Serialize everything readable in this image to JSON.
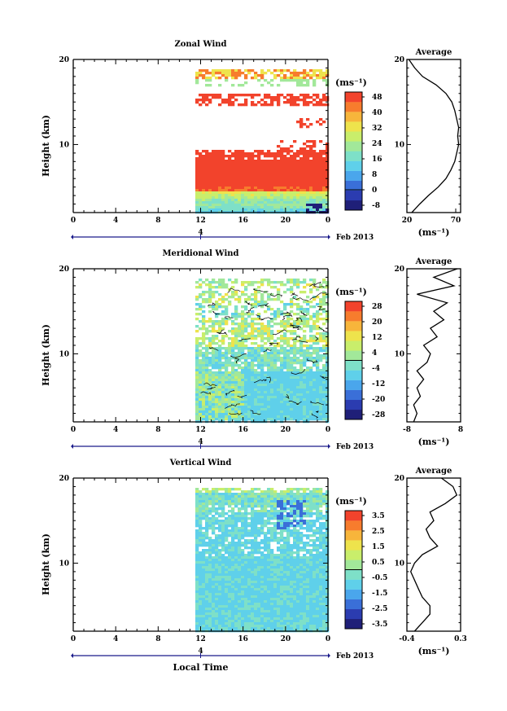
{
  "colormap": [
    "#1f1f78",
    "#2b3cb0",
    "#3a6fd8",
    "#4aa6ec",
    "#5fd0ea",
    "#7ee0c8",
    "#a2e89a",
    "#c9ee6b",
    "#eee34c",
    "#f7b53b",
    "#f77c2d",
    "#f2432c"
  ],
  "chart_data": [
    {
      "type": "heatmap",
      "title": "Zonal Wind",
      "ylabel": "Height (km)",
      "xlabel": "",
      "ylim": [
        2,
        20
      ],
      "y_ticks": [
        "10",
        "20"
      ],
      "x_ticks": [
        "0",
        "4",
        "8",
        "12",
        "16",
        "20",
        "0"
      ],
      "date_marker": "4",
      "date_label": "Feb 2013",
      "unit": "(ms⁻¹)",
      "colorbar_ticks": [
        "48",
        "40",
        "32",
        "24",
        "16",
        "8",
        "0",
        "-8"
      ],
      "data_start_hour": 11.5,
      "profile": {
        "title": "Average",
        "x_ticks": [
          "20",
          "70"
        ],
        "xlim": [
          20,
          75
        ],
        "xlabel": "(ms⁻¹)",
        "y_ticks": [
          "10",
          "20"
        ],
        "heights": [
          2,
          3,
          4,
          5,
          6,
          7,
          8,
          9,
          10,
          11,
          12,
          13,
          14,
          15,
          16,
          17,
          18,
          19,
          20
        ],
        "values": [
          25,
          33,
          42,
          52,
          60,
          65,
          69,
          71,
          73,
          72,
          73,
          71,
          69,
          66,
          60,
          50,
          36,
          28,
          22
        ]
      }
    },
    {
      "type": "heatmap",
      "title": "Meridional Wind",
      "ylabel": "Height (km)",
      "xlabel": "",
      "ylim": [
        2,
        20
      ],
      "y_ticks": [
        "10",
        "20"
      ],
      "x_ticks": [
        "0",
        "4",
        "8",
        "12",
        "16",
        "20",
        "0"
      ],
      "date_marker": "4",
      "date_label": "Feb 2013",
      "unit": "(ms⁻¹)",
      "colorbar_ticks": [
        "28",
        "20",
        "12",
        "4",
        "-4",
        "-12",
        "-20",
        "-28"
      ],
      "data_start_hour": 11.5,
      "profile": {
        "title": "Average",
        "x_ticks": [
          "-8",
          "8"
        ],
        "xlim": [
          -8,
          8
        ],
        "xlabel": "(ms⁻¹)",
        "y_ticks": [
          "10",
          "20"
        ],
        "heights": [
          2,
          3,
          4,
          5,
          6,
          7,
          8,
          9,
          10,
          11,
          12,
          13,
          14,
          15,
          16,
          17,
          18,
          19,
          20
        ],
        "values": [
          -6,
          -5,
          -6,
          -4,
          -5,
          -3,
          -5,
          -2,
          -1,
          -3,
          1,
          -1,
          3,
          0,
          4,
          -5,
          6,
          0,
          7
        ]
      }
    },
    {
      "type": "heatmap",
      "title": "Vertical Wind",
      "ylabel": "Height (km)",
      "xlabel": "Local Time",
      "ylim": [
        2,
        20
      ],
      "y_ticks": [
        "10",
        "20"
      ],
      "x_ticks": [
        "0",
        "4",
        "8",
        "12",
        "16",
        "20",
        "0"
      ],
      "date_marker": "4",
      "date_label": "Feb 2013",
      "unit": "(ms⁻¹)",
      "colorbar_ticks": [
        "3.5",
        "2.5",
        "1.5",
        "0.5",
        "-0.5",
        "-1.5",
        "-2.5",
        "-3.5"
      ],
      "data_start_hour": 11.5,
      "profile": {
        "title": "Average",
        "x_ticks": [
          "-0.4",
          "0.3"
        ],
        "xlim": [
          -0.4,
          0.3
        ],
        "xlabel": "(ms⁻¹)",
        "y_ticks": [
          "10",
          "20"
        ],
        "heights": [
          2,
          3,
          4,
          5,
          6,
          7,
          8,
          9,
          10,
          11,
          12,
          13,
          14,
          15,
          16,
          17,
          18,
          19,
          20
        ],
        "values": [
          -0.3,
          -0.2,
          -0.1,
          -0.1,
          -0.2,
          -0.25,
          -0.3,
          -0.35,
          -0.3,
          -0.2,
          0.0,
          -0.1,
          -0.15,
          -0.05,
          -0.1,
          0.1,
          0.25,
          0.2,
          0.05
        ]
      }
    }
  ]
}
